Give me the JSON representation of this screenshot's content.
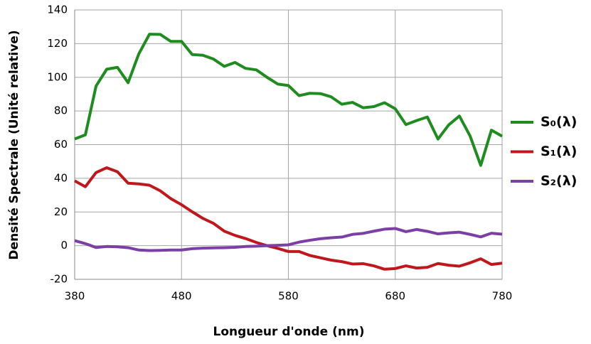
{
  "chart_data": {
    "type": "line",
    "x_label": "Longueur d'onde (nm)",
    "y_label": "Densité Spectrale (Unité relative)",
    "x": [
      380,
      390,
      400,
      410,
      420,
      430,
      440,
      450,
      460,
      470,
      480,
      490,
      500,
      510,
      520,
      530,
      540,
      550,
      560,
      570,
      580,
      590,
      600,
      610,
      620,
      630,
      640,
      650,
      660,
      670,
      680,
      690,
      700,
      710,
      720,
      730,
      740,
      750,
      760,
      770,
      780
    ],
    "series": [
      {
        "name": "S₀(λ)",
        "color": "#1f8c1f",
        "values": [
          63.4,
          65.8,
          94.8,
          104.8,
          105.9,
          96.8,
          113.9,
          125.6,
          125.5,
          121.3,
          121.3,
          113.5,
          113.1,
          110.8,
          106.5,
          108.8,
          105.3,
          104.4,
          100.0,
          96.0,
          95.1,
          89.1,
          90.5,
          90.3,
          88.4,
          84.0,
          85.1,
          81.9,
          82.6,
          84.9,
          81.3,
          71.9,
          74.3,
          76.4,
          63.3,
          71.7,
          77.0,
          65.2,
          47.7,
          68.6,
          65.0
        ]
      },
      {
        "name": "S₁(λ)",
        "color": "#c0171c",
        "values": [
          38.5,
          35.0,
          43.4,
          46.3,
          43.9,
          37.1,
          36.7,
          35.9,
          32.6,
          27.9,
          24.3,
          20.1,
          16.2,
          13.2,
          8.6,
          6.1,
          4.2,
          1.9,
          0,
          -1.6,
          -3.5,
          -3.5,
          -5.8,
          -7.2,
          -8.6,
          -9.5,
          -10.9,
          -10.7,
          -12.0,
          -14.0,
          -13.6,
          -12.0,
          -13.3,
          -12.9,
          -10.6,
          -11.6,
          -12.2,
          -10.2,
          -7.8,
          -11.2,
          -10.4
        ]
      },
      {
        "name": "S₂(λ)",
        "color": "#7b3fa6",
        "values": [
          3.0,
          1.2,
          -1.1,
          -0.5,
          -0.7,
          -1.2,
          -2.6,
          -2.9,
          -2.8,
          -2.6,
          -2.6,
          -1.8,
          -1.5,
          -1.3,
          -1.2,
          -1.0,
          -0.5,
          -0.3,
          0,
          0.2,
          0.5,
          2.1,
          3.2,
          4.1,
          4.7,
          5.1,
          6.7,
          7.3,
          8.6,
          9.8,
          10.2,
          8.3,
          9.6,
          8.5,
          7.0,
          7.6,
          8.0,
          6.7,
          5.2,
          7.4,
          6.8
        ]
      }
    ],
    "xlim": [
      380,
      780
    ],
    "xticks": [
      380,
      480,
      580,
      680,
      780
    ],
    "ylim": [
      -20,
      140
    ],
    "yticks": [
      -20,
      0,
      20,
      40,
      60,
      80,
      100,
      120,
      140
    ],
    "grid": true,
    "legend": "right"
  }
}
